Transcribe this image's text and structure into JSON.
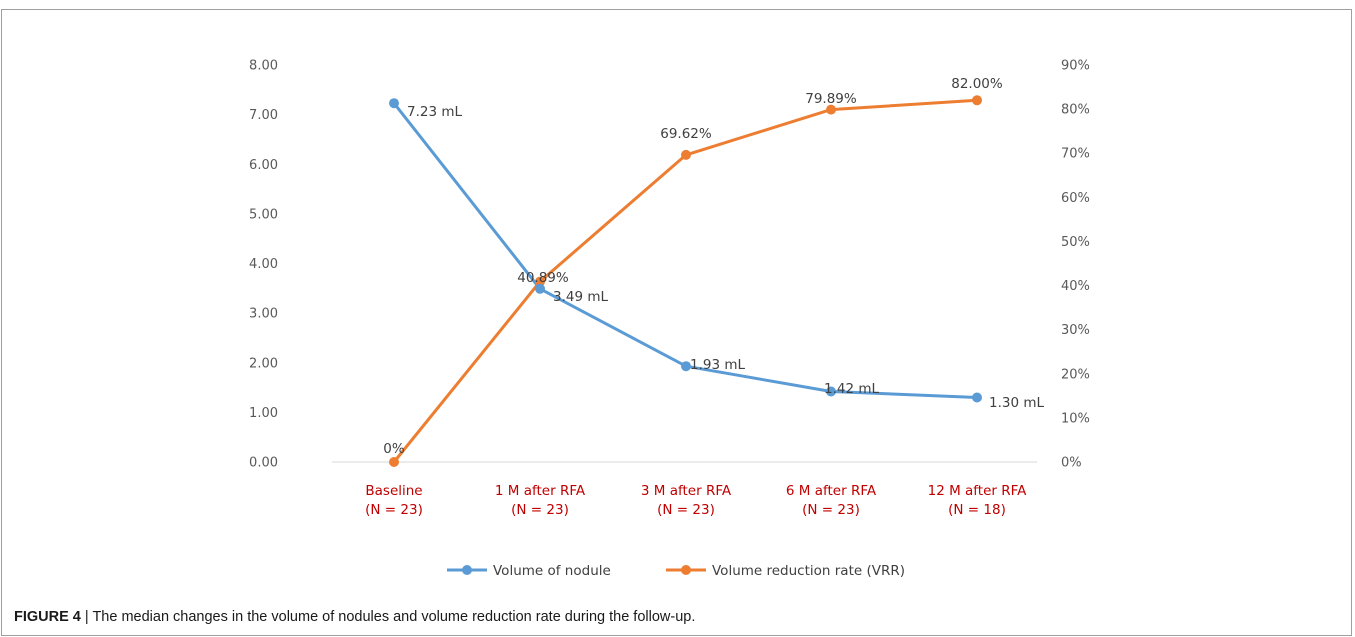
{
  "caption": {
    "figure_label": "FIGURE 4",
    "separator": " | ",
    "text": "The median changes in the volume of nodules and volume reduction rate during the follow-up."
  },
  "chart_data": {
    "type": "line",
    "title": "",
    "categories": [
      [
        "Baseline",
        "(N = 23)"
      ],
      [
        "1 M after RFA",
        "(N = 23)"
      ],
      [
        "3 M after RFA",
        "(N = 23)"
      ],
      [
        "6 M after RFA",
        "(N = 23)"
      ],
      [
        "12 M after RFA",
        "(N = 18)"
      ]
    ],
    "y_left": {
      "range": [
        0,
        8
      ],
      "ticks": [
        "0.00",
        "1.00",
        "2.00",
        "3.00",
        "4.00",
        "5.00",
        "6.00",
        "7.00",
        "8.00"
      ]
    },
    "y_right": {
      "range": [
        0,
        90
      ],
      "ticks": [
        "0%",
        "10%",
        "20%",
        "30%",
        "40%",
        "50%",
        "60%",
        "70%",
        "80%",
        "90%"
      ]
    },
    "grid": false,
    "legend_position": "bottom",
    "category_label_color": "#c00000",
    "series": [
      {
        "name": "Volume of nodule",
        "axis": "left",
        "color": "#5b9bd5",
        "values": [
          7.23,
          3.49,
          1.93,
          1.42,
          1.3
        ],
        "labels": [
          "7.23 mL",
          "3.49 mL",
          "1.93 mL",
          "1.42 mL",
          "1.30 mL"
        ]
      },
      {
        "name": "Volume reduction rate (VRR)",
        "axis": "right",
        "color": "#ed7d31",
        "values": [
          0,
          40.89,
          69.62,
          79.89,
          82.0
        ],
        "labels": [
          "0%",
          "40.89%",
          "69.62%",
          "79.89%",
          "82.00%"
        ]
      }
    ]
  }
}
